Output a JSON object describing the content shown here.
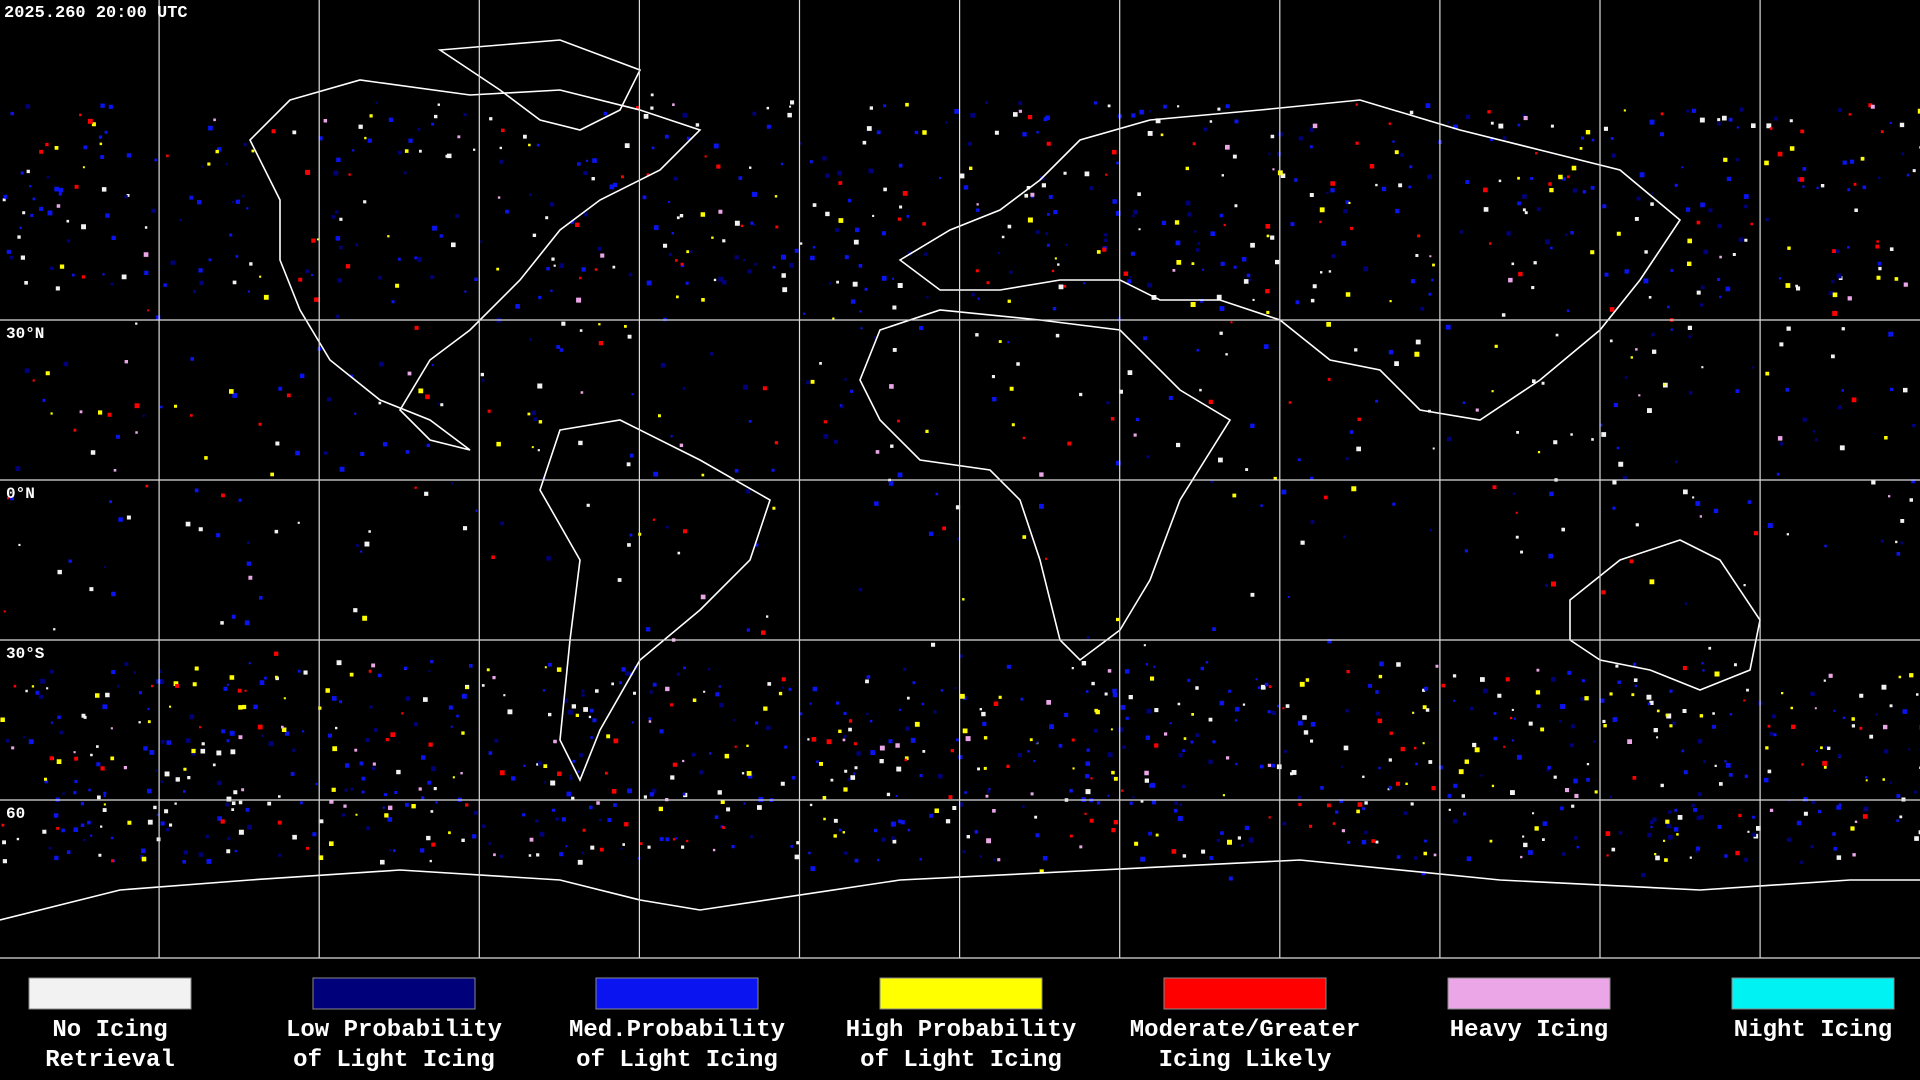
{
  "timestamp": "2025.260 20:00 UTC",
  "latitude_labels": [
    "30°N",
    "0°N",
    "30°S",
    "60"
  ],
  "legend": [
    {
      "lines": [
        "No Icing",
        "Retrieval"
      ],
      "color": "#f2f2f2"
    },
    {
      "lines": [
        "Low Probability",
        "of Light Icing"
      ],
      "color": "#00007a"
    },
    {
      "lines": [
        "Med.Probability",
        "of Light Icing"
      ],
      "color": "#0a14f0"
    },
    {
      "lines": [
        "High Probability",
        "of Light Icing"
      ],
      "color": "#ffff00"
    },
    {
      "lines": [
        "Moderate/Greater",
        "Icing Likely"
      ],
      "color": "#ff0000"
    },
    {
      "lines": [
        "Heavy Icing"
      ],
      "color": "#eaa6e6"
    },
    {
      "lines": [
        "Night Icing"
      ],
      "color": "#00f2f2"
    }
  ]
}
